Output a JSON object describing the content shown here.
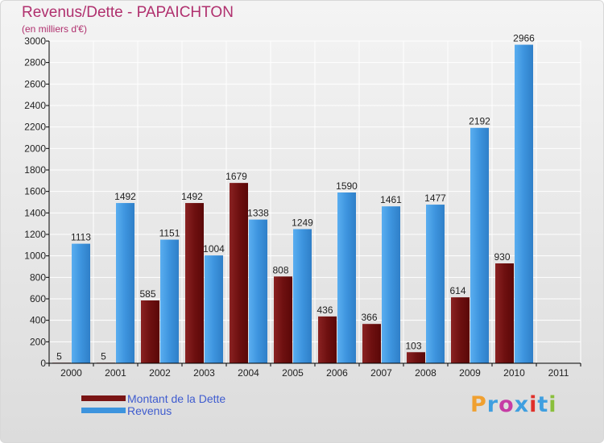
{
  "title": "Revenus/Dette - PAPAICHTON",
  "subtitle": "(en milliers d'€)",
  "legend": [
    {
      "label": "Montant de la Dette",
      "color": "#7a1414"
    },
    {
      "label": "Revenus",
      "color": "#3d94de"
    }
  ],
  "logo": {
    "text": "Proxiti",
    "colors": [
      "#f0a030",
      "#3f9fe0",
      "#c63ca5",
      "#3f9fe0",
      "#e0302a",
      "#3f9fe0",
      "#8abf3c"
    ]
  },
  "chart_data": {
    "type": "bar",
    "categories": [
      "2000",
      "2001",
      "2002",
      "2003",
      "2004",
      "2005",
      "2006",
      "2007",
      "2008",
      "2009",
      "2010",
      "2011"
    ],
    "series": [
      {
        "name": "Montant de la Dette",
        "values": [
          5,
          5,
          585,
          1492,
          1679,
          808,
          436,
          366,
          103,
          614,
          930,
          null
        ],
        "color": "#7a1414"
      },
      {
        "name": "Revenus",
        "values": [
          1113,
          1492,
          1151,
          1004,
          1338,
          1249,
          1590,
          1461,
          1477,
          2192,
          2966,
          null
        ],
        "color": "#3d94de"
      }
    ],
    "ylim": [
      0,
      3000
    ],
    "yticks": [
      0,
      200,
      400,
      600,
      800,
      1000,
      1200,
      1400,
      1600,
      1800,
      2000,
      2200,
      2400,
      2600,
      2800,
      3000
    ],
    "grid": true
  }
}
